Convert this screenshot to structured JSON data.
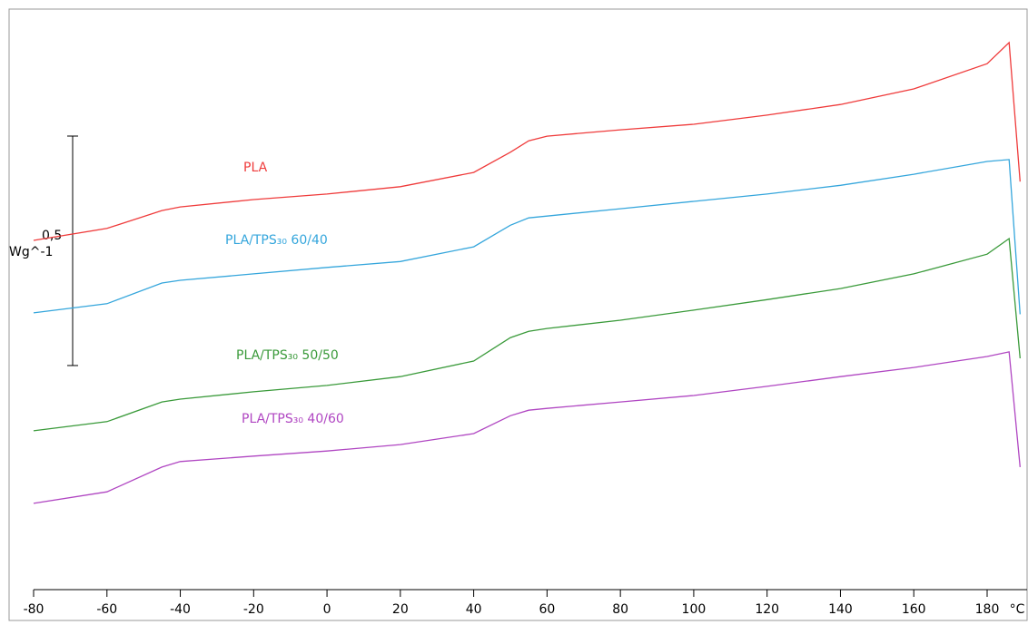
{
  "chart_data": {
    "type": "line",
    "xlabel": "°C",
    "xlim": [
      -80,
      193
    ],
    "ylim": [
      0,
      1.265
    ],
    "xticks": [
      -80,
      -60,
      -40,
      -20,
      0,
      20,
      40,
      60,
      80,
      100,
      120,
      140,
      160,
      180
    ],
    "scale_bar": {
      "value": 0.5,
      "label": "0,5",
      "unit": "Wg^-1"
    },
    "series": [
      {
        "name": "PLA",
        "color": "#ef3b3b",
        "x": [
          -80,
          -60,
          -45,
          -40,
          -20,
          0,
          20,
          40,
          50,
          55,
          60,
          80,
          100,
          120,
          140,
          160,
          180,
          186,
          189
        ],
        "values": [
          0.761,
          0.787,
          0.826,
          0.834,
          0.85,
          0.862,
          0.878,
          0.909,
          0.953,
          0.978,
          0.988,
          1.002,
          1.014,
          1.034,
          1.057,
          1.091,
          1.146,
          1.192,
          0.889
        ]
      },
      {
        "name": "PLA/TPS₃₀ 60/40",
        "color": "#35a6dc",
        "x": [
          -80,
          -60,
          -45,
          -40,
          -20,
          0,
          20,
          40,
          50,
          55,
          60,
          80,
          100,
          120,
          140,
          160,
          180,
          186,
          189
        ],
        "values": [
          0.603,
          0.623,
          0.668,
          0.674,
          0.688,
          0.702,
          0.715,
          0.747,
          0.794,
          0.81,
          0.814,
          0.83,
          0.846,
          0.862,
          0.881,
          0.905,
          0.933,
          0.937,
          0.6
        ]
      },
      {
        "name": "PLA/TPS₃₀ 50/50",
        "color": "#3a9a3a",
        "x": [
          -80,
          -60,
          -45,
          -40,
          -20,
          0,
          20,
          40,
          50,
          55,
          60,
          80,
          100,
          120,
          140,
          160,
          180,
          186,
          189
        ],
        "values": [
          0.346,
          0.366,
          0.409,
          0.415,
          0.431,
          0.445,
          0.464,
          0.498,
          0.549,
          0.563,
          0.569,
          0.587,
          0.609,
          0.632,
          0.656,
          0.688,
          0.731,
          0.765,
          0.504
        ]
      },
      {
        "name": "PLA/TPS₃₀ 40/60",
        "color": "#b046c2",
        "x": [
          -80,
          -60,
          -45,
          -40,
          -20,
          0,
          20,
          40,
          50,
          55,
          60,
          80,
          100,
          120,
          140,
          160,
          180,
          186,
          189
        ],
        "values": [
          0.188,
          0.213,
          0.267,
          0.279,
          0.291,
          0.302,
          0.316,
          0.34,
          0.379,
          0.391,
          0.395,
          0.409,
          0.423,
          0.443,
          0.464,
          0.484,
          0.508,
          0.518,
          0.267
        ]
      }
    ]
  }
}
